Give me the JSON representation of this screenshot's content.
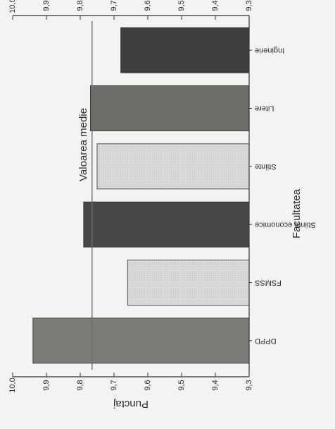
{
  "chart_data": {
    "type": "bar",
    "orientation": "horizontal, page rotated 180°",
    "categories": [
      "Inginerie",
      "Litere",
      "Stiinte",
      "Stiinte economice",
      "FSMSS",
      "DPPD"
    ],
    "values": [
      9.68,
      9.77,
      9.75,
      9.79,
      9.66,
      9.94
    ],
    "bar_colors": [
      "#3d3f3c",
      "#6b6d69",
      "#d4d6d8",
      "#474946",
      "#d9dbdd",
      "#7a7c78"
    ],
    "bar_patterns": [
      "solid",
      "solid",
      "dotted",
      "solid",
      "dotted",
      "solid"
    ],
    "xlabel": "Facultatea",
    "ylabel": "Punctaj",
    "ylim": [
      9.3,
      10.0
    ],
    "ticks": [
      "9,3",
      "9,4",
      "9,5",
      "9,6",
      "9,7",
      "9,8",
      "9,9",
      "10,0"
    ],
    "mean_line": {
      "label": "Valoarea medie",
      "value": 9.765,
      "color": "#6f6f6f"
    },
    "grid": false,
    "top_title_fragment": "..."
  }
}
